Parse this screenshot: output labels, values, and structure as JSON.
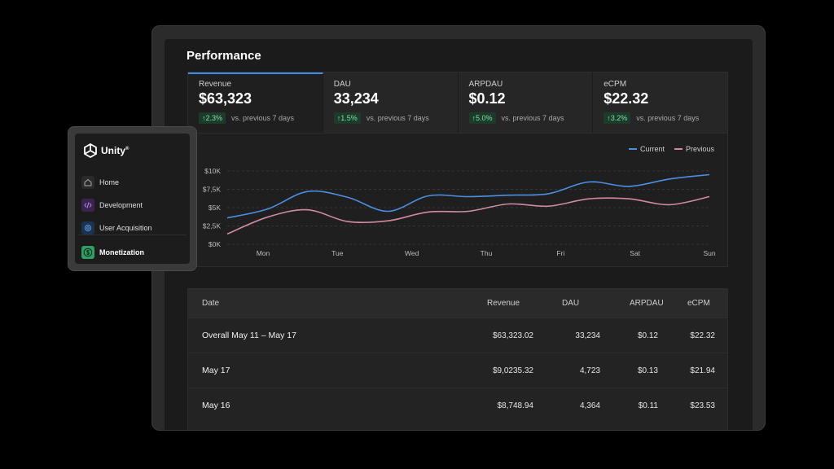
{
  "performance": {
    "title": "Performance",
    "kpis": [
      {
        "label": "Revenue",
        "value": "$63,323",
        "delta": "↑2.3%",
        "compare": "vs. previous 7 days",
        "active": true
      },
      {
        "label": "DAU",
        "value": "33,234",
        "delta": "↑1.5%",
        "compare": "vs. previous 7 days"
      },
      {
        "label": "ARPDAU",
        "value": "$0.12",
        "delta": "↑5.0%",
        "compare": "vs. previous 7 days"
      },
      {
        "label": "eCPM",
        "value": "$22.32",
        "delta": "↑3.2%",
        "compare": "vs. previous 7 days"
      }
    ]
  },
  "colors": {
    "current": "#4a8fe0",
    "previous": "#d08aa6",
    "accent": "#3f8ee8",
    "delta": "#7fe0a4"
  },
  "chart_data": {
    "type": "line",
    "x": [
      "Mon",
      "",
      "Tue",
      "",
      "Wed",
      "",
      "Thu",
      "",
      "Fri",
      "",
      "Sat",
      "",
      "Sun"
    ],
    "x_ticks": [
      "Mon",
      "Tue",
      "Wed",
      "Thu",
      "Fri",
      "Sat",
      "Sun"
    ],
    "y_ticks": [
      "$0K",
      "$2,5K",
      "$5K",
      "$7,5K",
      "$10K"
    ],
    "ylim": [
      0,
      10000
    ],
    "legend": {
      "position": "top-right"
    },
    "grid": "horizontal-dashed",
    "series": [
      {
        "name": "Current",
        "values": [
          3600,
          4800,
          7200,
          6400,
          4500,
          6600,
          6500,
          6700,
          6900,
          8500,
          7900,
          8900,
          9500
        ]
      },
      {
        "name": "Previous",
        "values": [
          1400,
          3700,
          4700,
          3100,
          3200,
          4400,
          4500,
          5500,
          5200,
          6200,
          6200,
          5400,
          6500
        ]
      }
    ]
  },
  "table": {
    "headers": {
      "date": "Date",
      "revenue": "Revenue",
      "dau": "DAU",
      "arpdau": "ARPDAU",
      "ecpm": "eCPM"
    },
    "rows": [
      {
        "date": "Overall May 11 – May 17",
        "revenue": "$63,323.02",
        "dau": "33,234",
        "arpdau": "$0.12",
        "ecpm": "$22.32"
      },
      {
        "date": "May 17",
        "revenue": "$9,0235.32",
        "dau": "4,723",
        "arpdau": "$0.13",
        "ecpm": "$21.94"
      },
      {
        "date": "May 16",
        "revenue": "$8,748.94",
        "dau": "4,364",
        "arpdau": "$0.11",
        "ecpm": "$23.53"
      }
    ]
  },
  "sidebar": {
    "brand": "Unity",
    "brand_mark": "®",
    "items": [
      {
        "label": "Home",
        "icon": "home-icon"
      },
      {
        "label": "Development",
        "icon": "code-icon"
      },
      {
        "label": "User Acquisition",
        "icon": "target-icon"
      },
      {
        "label": "Monetization",
        "icon": "dollar-icon",
        "active": true
      }
    ]
  }
}
